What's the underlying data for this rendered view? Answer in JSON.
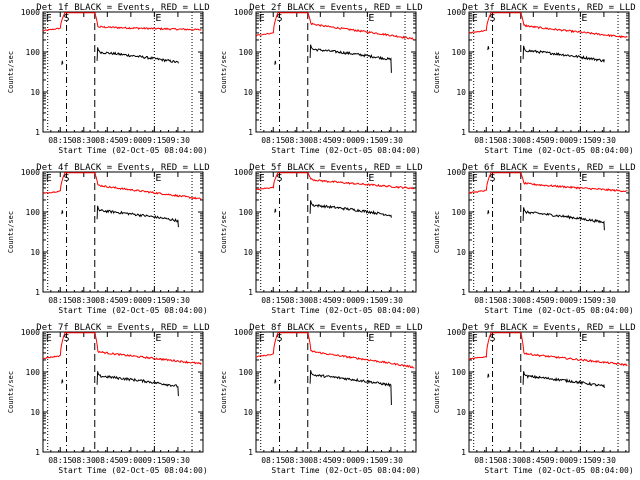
{
  "chart_data": {
    "type": "line",
    "y_scale": "log",
    "ylim": [
      1,
      1000
    ],
    "grid": false,
    "ytick_labels": [
      "1",
      "10",
      "100",
      "1000"
    ],
    "xtick_labels": [
      "08:15",
      "08:30",
      "08:45",
      "09:00",
      "09:15",
      "09:30"
    ],
    "xlabel": "Start Time (02-Oct-05 08:04:00)",
    "ylabel": "Counts/sec",
    "colors": {
      "events": "#000000",
      "lld": "#ff0000"
    },
    "marker_labels": {
      "left": "E",
      "second": "S",
      "right": "E"
    },
    "panels": [
      {
        "title": "Det 1f BLACK = Events, RED = LLD",
        "lld": {
          "start": 340,
          "peak": 960,
          "plateau": 430,
          "end": 360
        },
        "events": {
          "plateau": 100,
          "end": 52,
          "pre": 60
        }
      },
      {
        "title": "Det 2f BLACK = Events, RED = LLD",
        "lld": {
          "start": 260,
          "peak": 960,
          "plateau": 520,
          "end": 210
        },
        "events": {
          "plateau": 118,
          "end": 30,
          "pre": 60
        }
      },
      {
        "title": "Det 3f BLACK = Events, RED = LLD",
        "lld": {
          "start": 300,
          "peak": 960,
          "plateau": 470,
          "end": 230
        },
        "events": {
          "plateau": 110,
          "end": 65,
          "pre": 140
        }
      },
      {
        "title": "Det 4f BLACK = Events, RED = LLD",
        "lld": {
          "start": 290,
          "peak": 960,
          "plateau": 480,
          "end": 210
        },
        "events": {
          "plateau": 110,
          "end": 42,
          "pre": 110
        }
      },
      {
        "title": "Det 5f BLACK = Events, RED = LLD",
        "lld": {
          "start": 360,
          "peak": 960,
          "plateau": 660,
          "end": 390
        },
        "events": {
          "plateau": 150,
          "end": 72,
          "pre": 120
        }
      },
      {
        "title": "Det 6f BLACK = Events, RED = LLD",
        "lld": {
          "start": 300,
          "peak": 960,
          "plateau": 530,
          "end": 330
        },
        "events": {
          "plateau": 100,
          "end": 35,
          "pre": 110
        }
      },
      {
        "title": "Det 7f BLACK = Events, RED = LLD",
        "lld": {
          "start": 220,
          "peak": 960,
          "plateau": 330,
          "end": 160
        },
        "events": {
          "plateau": 80,
          "end": 25,
          "pre": 65
        }
      },
      {
        "title": "Det 8f BLACK = Events, RED = LLD",
        "lld": {
          "start": 240,
          "peak": 960,
          "plateau": 340,
          "end": 130
        },
        "events": {
          "plateau": 85,
          "end": 15,
          "pre": 65
        }
      },
      {
        "title": "Det 9f BLACK = Events, RED = LLD",
        "lld": {
          "start": 210,
          "peak": 960,
          "plateau": 300,
          "end": 150
        },
        "events": {
          "plateau": 80,
          "end": 40,
          "pre": 90
        }
      }
    ]
  }
}
